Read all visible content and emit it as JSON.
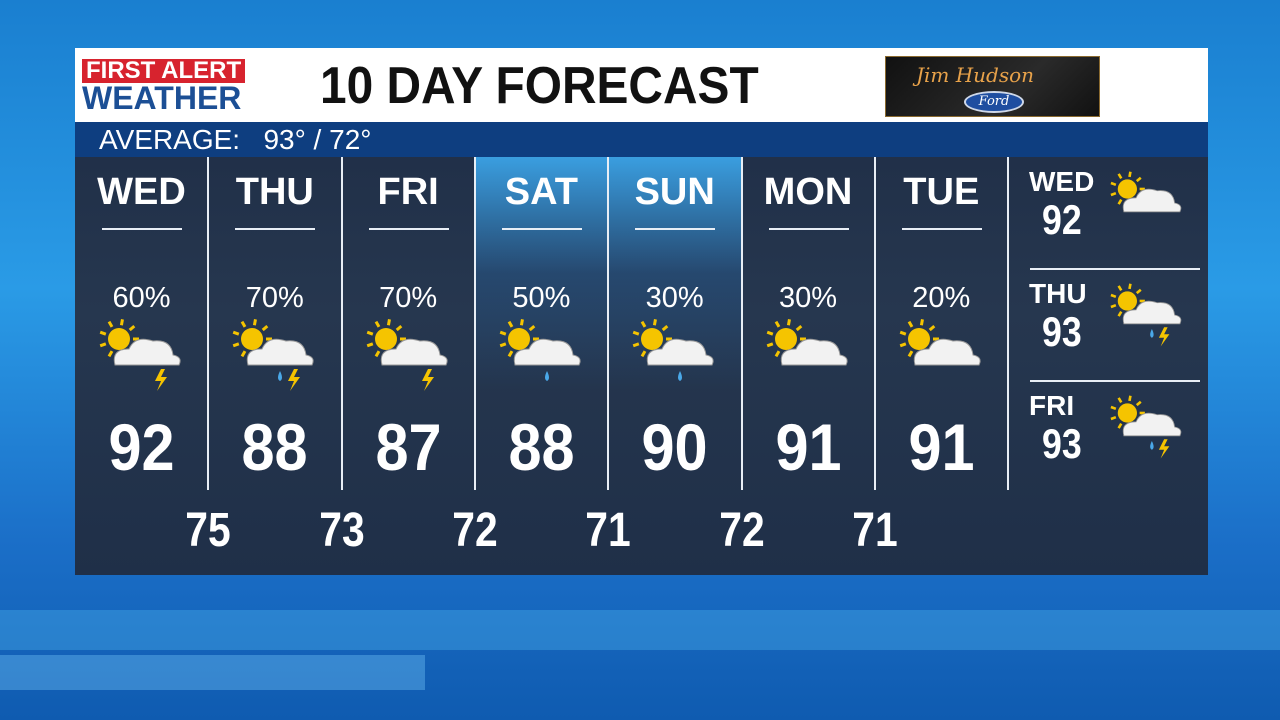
{
  "header": {
    "brand_line1": "FIRST ALERT",
    "brand_line2": "WEATHER",
    "title": "10 DAY FORECAST",
    "sponsor_script": "Jim Hudson",
    "sponsor_brand": "Ford"
  },
  "average": {
    "label": "AVERAGE:",
    "value": "93° / 72°"
  },
  "days": [
    {
      "day": "WED",
      "pct": "60%",
      "icon": "partly-sunny-thunderstorm",
      "high": "92",
      "highlight": false
    },
    {
      "day": "THU",
      "pct": "70%",
      "icon": "partly-sunny-rain-thunderstorm",
      "high": "88",
      "highlight": false
    },
    {
      "day": "FRI",
      "pct": "70%",
      "icon": "partly-sunny-thunderstorm",
      "high": "87",
      "highlight": false
    },
    {
      "day": "SAT",
      "pct": "50%",
      "icon": "partly-sunny-rain",
      "high": "88",
      "highlight": true
    },
    {
      "day": "SUN",
      "pct": "30%",
      "icon": "partly-sunny-rain",
      "high": "90",
      "highlight": true
    },
    {
      "day": "MON",
      "pct": "30%",
      "icon": "partly-cloudy",
      "high": "91",
      "highlight": false
    },
    {
      "day": "TUE",
      "pct": "20%",
      "icon": "partly-cloudy",
      "high": "91",
      "highlight": false
    }
  ],
  "lows": [
    "75",
    "73",
    "72",
    "71",
    "72",
    "71"
  ],
  "extended": [
    {
      "day": "WED",
      "high": "92",
      "icon": "partly-cloudy"
    },
    {
      "day": "THU",
      "high": "93",
      "icon": "partly-sunny-rain-thunderstorm"
    },
    {
      "day": "FRI",
      "high": "93",
      "icon": "partly-sunny-rain-thunderstorm"
    }
  ],
  "colors": {
    "brand_red": "#d7232e",
    "brand_blue": "#1c4f95",
    "average_bar": "#0e3e80",
    "sun": "#f5c400"
  }
}
